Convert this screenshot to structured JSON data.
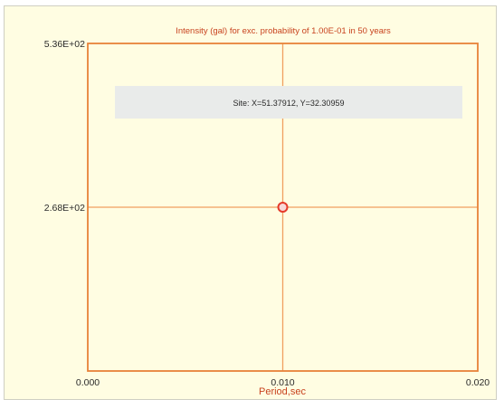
{
  "chart_data": {
    "type": "scatter",
    "title": "Intensity (gal) for exc. probability of 1.00E-01 in 50 years",
    "xlabel": "Period,sec",
    "ylabel": "",
    "xlim": [
      0.0,
      0.02
    ],
    "ylim": [
      0,
      536
    ],
    "x_ticks": [
      "0.000",
      "0.010",
      "0.020"
    ],
    "y_ticks": [
      "5.36E+02",
      "2.68E+02"
    ],
    "points": [
      {
        "x": 0.01,
        "y": 268
      }
    ],
    "grid": true,
    "annotation": "Site: X=51.37912, Y=32.30959",
    "colors": {
      "background": "#fffde2",
      "frame": "#e8823a",
      "grid": "#f0a060",
      "marker_fill": "#f8d8d8",
      "marker_stroke": "#e53a2a",
      "title": "#c8431f",
      "info_box": "#e9ebea"
    }
  }
}
